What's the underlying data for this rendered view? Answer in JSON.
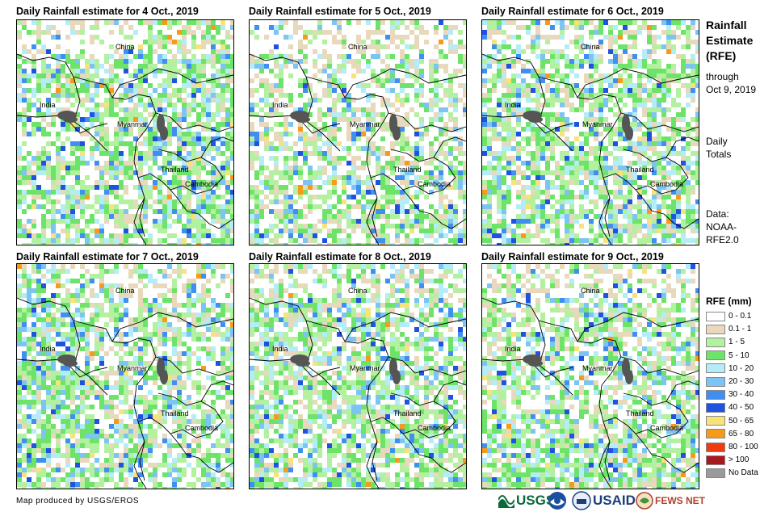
{
  "panels": [
    {
      "title": "Daily Rainfall estimate for 4 Oct., 2019"
    },
    {
      "title": "Daily Rainfall estimate for 5 Oct., 2019"
    },
    {
      "title": "Daily Rainfall estimate for 6 Oct., 2019"
    },
    {
      "title": "Daily Rainfall estimate for 7 Oct., 2019"
    },
    {
      "title": "Daily Rainfall estimate for 8 Oct., 2019"
    },
    {
      "title": "Daily Rainfall estimate for 9 Oct., 2019"
    }
  ],
  "map_labels": {
    "china": "China",
    "india": "India",
    "myanmar": "Myanmar",
    "thailand": "Thailand",
    "cambodia": "Cambodia"
  },
  "sidebar": {
    "title_1": "Rainfall",
    "title_2": "Estimate",
    "title_3": "(RFE)",
    "through": "through",
    "date": "Oct 9, 2019",
    "daily": "Daily",
    "totals": "Totals",
    "data_label": "Data:",
    "source_1": "NOAA-",
    "source_2": "RFE2.0"
  },
  "legend": {
    "title": "RFE (mm)",
    "items": [
      {
        "label": "0 - 0.1",
        "color": "#ffffff"
      },
      {
        "label": "0.1 - 1",
        "color": "#e8d9bd"
      },
      {
        "label": "1 - 5",
        "color": "#b3f0a0"
      },
      {
        "label": "5 - 10",
        "color": "#6ee36a"
      },
      {
        "label": "10 - 20",
        "color": "#b4ecf7"
      },
      {
        "label": "20 - 30",
        "color": "#7cc4f2"
      },
      {
        "label": "30 - 40",
        "color": "#3f8ef0"
      },
      {
        "label": "40 - 50",
        "color": "#1f52e0"
      },
      {
        "label": "50 - 65",
        "color": "#f7e37a"
      },
      {
        "label": "65 - 80",
        "color": "#f79a1a"
      },
      {
        "label": "80 - 100",
        "color": "#f03a10"
      },
      {
        "label": "> 100",
        "color": "#a8181c"
      },
      {
        "label": "No Data",
        "color": "#9a9a9a"
      }
    ]
  },
  "credit": "Map produced by USGS/EROS",
  "logos": {
    "usgs": "USGS",
    "usaid": "USAID",
    "fewsnet": "FEWS NET"
  }
}
